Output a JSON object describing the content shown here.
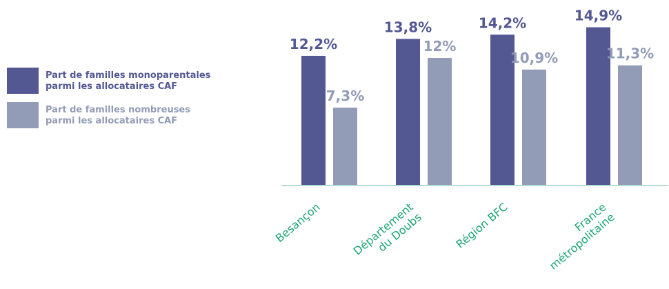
{
  "chart_data": {
    "type": "bar",
    "categories": [
      "Besançon",
      "Département\ndu Doubs",
      "Région BFC",
      "France\nmétropolitaine"
    ],
    "series": [
      {
        "name": "Part de familles monoparentales\nparmi les allocataires CAF",
        "values": [
          12.2,
          13.8,
          14.2,
          14.9
        ],
        "labels": [
          "12,2%",
          "13,8%",
          "14,2%",
          "14,9%"
        ],
        "color": "#535893"
      },
      {
        "name": "Part de familles nombreuses\nparmi les allocataires CAF",
        "values": [
          7.3,
          12,
          10.9,
          11.3
        ],
        "labels": [
          "7,3%",
          "12%",
          "10,9%",
          "11,3%"
        ],
        "color": "#929cb6"
      }
    ],
    "ylim": [
      0,
      15
    ],
    "grid": false,
    "legend_position": "left",
    "colors": {
      "axis": "#b3ddd4",
      "category_label": "#1aa571",
      "series1_text": "#535893",
      "series2_text": "#929cb6"
    }
  }
}
